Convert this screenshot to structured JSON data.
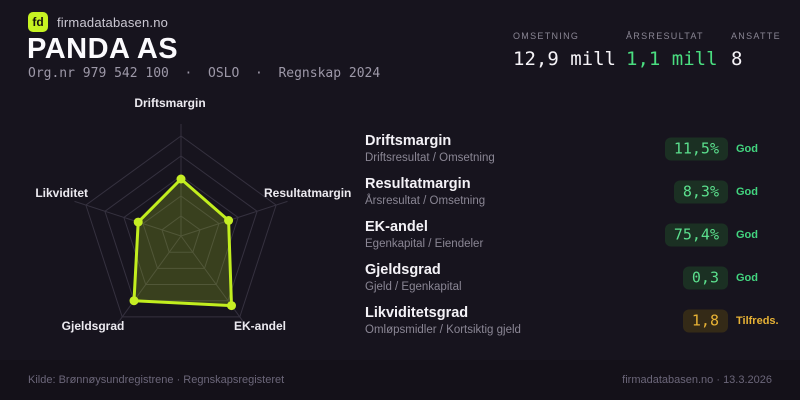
{
  "brand": {
    "logo": "fd",
    "site": "firmadatabasen.no"
  },
  "header": {
    "company": "PANDA AS",
    "meta": "Org.nr 979 542 100  ·  OSLO  ·  Regnskap 2024"
  },
  "stats": [
    {
      "label": "OMSETNING",
      "value": "12,9 mill",
      "color": "#f5f3f7"
    },
    {
      "label": "ÅRSRESULTAT",
      "value": "1,1 mill",
      "color": "#4ade80"
    },
    {
      "label": "ANSATTE",
      "value": "8",
      "color": "#f5f3f7"
    }
  ],
  "chart_data": {
    "type": "radar",
    "axes": [
      "Driftsmargin",
      "Resultatmargin",
      "EK-andel",
      "Gjeldsgrad",
      "Likviditet"
    ],
    "values_normalized": [
      0.57,
      0.5,
      0.86,
      0.8,
      0.45
    ],
    "metric_values": [
      "11,5%",
      "8,3%",
      "75,4%",
      "0,3",
      "1,8"
    ],
    "rings": 5,
    "accent": "#c2ee1e",
    "fill": "rgba(194,238,30,0.2)",
    "grid_color": "#35313f"
  },
  "panel": {
    "rows": [
      {
        "title": "Driftsmargin",
        "formula": "Driftsresultat / Omsetning",
        "value": "11,5%",
        "status": "God",
        "tone": "good"
      },
      {
        "title": "Resultatmargin",
        "formula": "Årsresultat / Omsetning",
        "value": "8,3%",
        "status": "God",
        "tone": "good"
      },
      {
        "title": "EK-andel",
        "formula": "Egenkapital / Eiendeler",
        "value": "75,4%",
        "status": "God",
        "tone": "good"
      },
      {
        "title": "Gjeldsgrad",
        "formula": "Gjeld / Egenkapital",
        "value": "0,3",
        "status": "God",
        "tone": "good"
      },
      {
        "title": "Likviditetsgrad",
        "formula": "Omløpsmidler / Kortsiktig gjeld",
        "value": "1,8",
        "status": "Tilfreds.",
        "tone": "warn"
      }
    ]
  },
  "footer": {
    "source": "Kilde: Brønnøysundregistrene · Regnskapsregisteret",
    "site_date": "firmadatabasen.no · 13.3.2026"
  }
}
